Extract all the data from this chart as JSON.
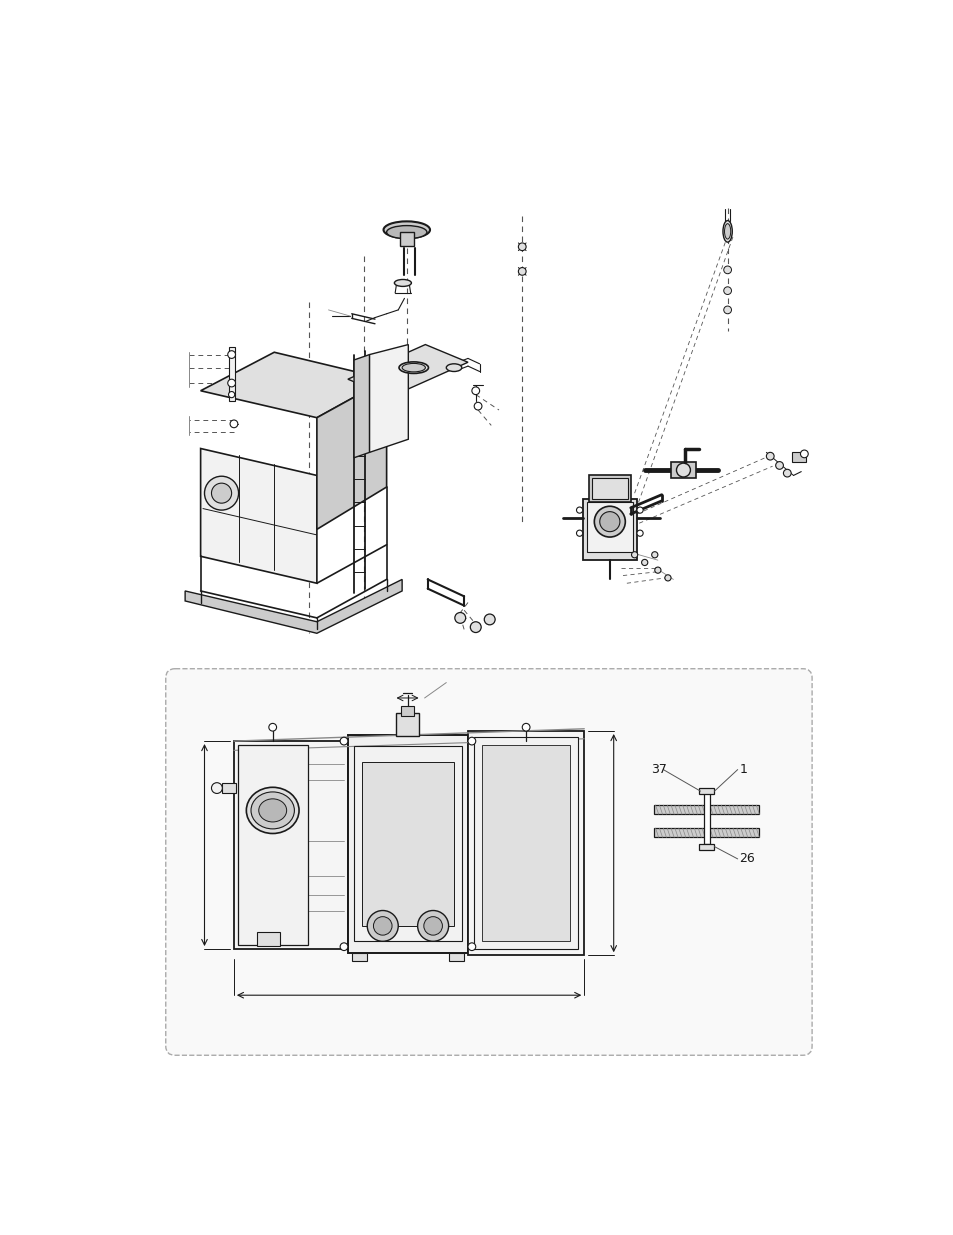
{
  "bg_color": "#ffffff",
  "line_color": "#1a1a1a",
  "dashed_color": "#555555",
  "fill_light": "#f2f2f2",
  "fill_mid": "#e0e0e0",
  "fill_dark": "#cccccc",
  "fill_vdark": "#b8b8b8",
  "label_37": "37",
  "label_1": "1",
  "label_26": "26",
  "box_bg": "#f9f9f9",
  "box_border": "#aaaaaa"
}
